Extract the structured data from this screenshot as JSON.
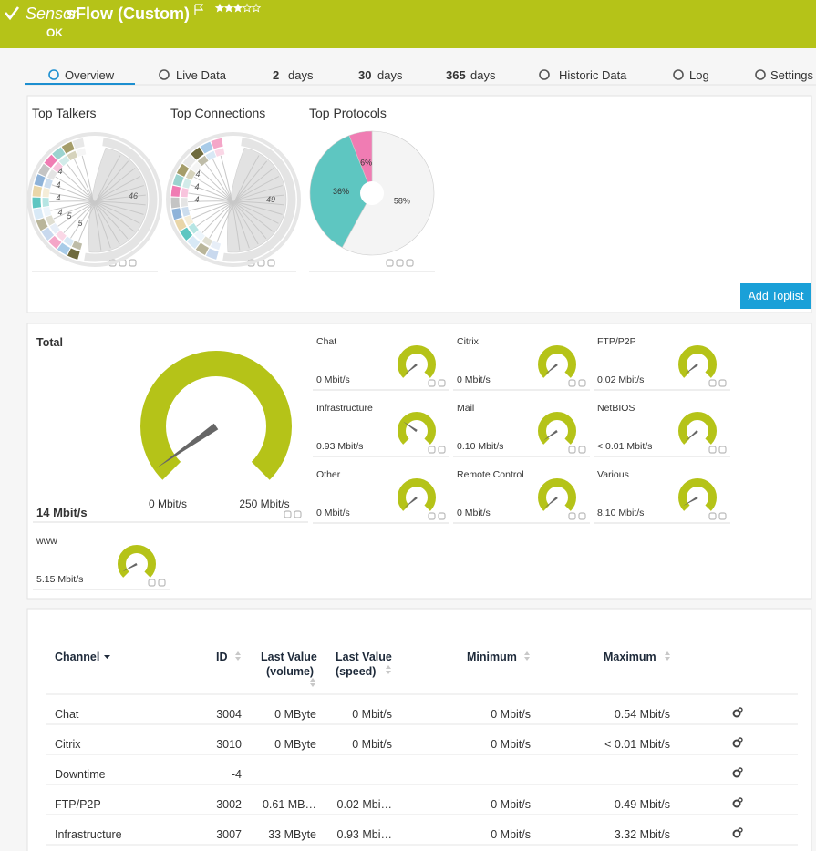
{
  "header": {
    "prefix": "Sensor",
    "title": "sFlow (Custom)",
    "status": "OK"
  },
  "tabs": [
    {
      "label": "Overview"
    },
    {
      "label": "Live Data"
    },
    {
      "number": "2",
      "label": "days"
    },
    {
      "number": "30",
      "label": "days"
    },
    {
      "number": "365",
      "label": "days"
    },
    {
      "label": "Historic Data"
    },
    {
      "label": "Log"
    },
    {
      "label": "Settings"
    }
  ],
  "toplists": {
    "items": [
      {
        "title": "Top Talkers",
        "labels": [
          "46",
          "4",
          "4",
          "4",
          "4",
          "5",
          "5"
        ]
      },
      {
        "title": "Top Connections",
        "labels": [
          "49",
          "4",
          "4",
          "4"
        ]
      },
      {
        "title": "Top Protocols",
        "chart_data": {
          "type": "pie",
          "values": [
            58,
            36,
            6
          ],
          "value_labels": [
            "58%",
            "36%",
            "6%"
          ],
          "colors": [
            "#f4f4f4",
            "#5ec6c1",
            "#f07cb3"
          ]
        }
      }
    ],
    "button": "Add Toplist"
  },
  "gauges": {
    "total": {
      "label": "Total",
      "value": "14 Mbit/s",
      "min": "0 Mbit/s",
      "max": "250 Mbit/s"
    },
    "channels": [
      {
        "label": "Chat",
        "value": "0 Mbit/s"
      },
      {
        "label": "Citrix",
        "value": "0 Mbit/s"
      },
      {
        "label": "FTP/P2P",
        "value": "0.02 Mbit/s"
      },
      {
        "label": "Infrastructure",
        "value": "0.93 Mbit/s"
      },
      {
        "label": "Mail",
        "value": "0.10 Mbit/s"
      },
      {
        "label": "NetBIOS",
        "value": "< 0.01 Mbit/s"
      },
      {
        "label": "Other",
        "value": "0 Mbit/s"
      },
      {
        "label": "Remote Control",
        "value": "0 Mbit/s"
      },
      {
        "label": "Various",
        "value": "8.10 Mbit/s"
      },
      {
        "label": "www",
        "value": "5.15 Mbit/s"
      }
    ]
  },
  "table": {
    "headers": [
      [
        "Channel"
      ],
      [
        "ID"
      ],
      [
        "Last Value",
        "(volume)"
      ],
      [
        "Last Value",
        "(speed)"
      ],
      [
        "Minimum"
      ],
      [
        "Maximum"
      ]
    ],
    "rows": [
      {
        "channel": "Chat",
        "id": 3004,
        "volume": "0 MByte",
        "speed": "0 Mbit/s",
        "min": "0 Mbit/s",
        "max": "0.54 Mbit/s"
      },
      {
        "channel": "Citrix",
        "id": 3010,
        "volume": "0 MByte",
        "speed": "0 Mbit/s",
        "min": "0 Mbit/s",
        "max": "< 0.01 Mbit/s"
      },
      {
        "channel": "Downtime",
        "id": -4
      },
      {
        "channel": "FTP/P2P",
        "id": 3002,
        "volume": "0.61 MB…",
        "speed": "0.02 Mbi…",
        "min": "0 Mbit/s",
        "max": "0.49 Mbit/s"
      },
      {
        "channel": "Infrastructure",
        "id": 3007,
        "volume": "33 MByte",
        "speed": "0.93 Mbi…",
        "min": "0 Mbit/s",
        "max": "3.32 Mbit/s"
      }
    ]
  }
}
